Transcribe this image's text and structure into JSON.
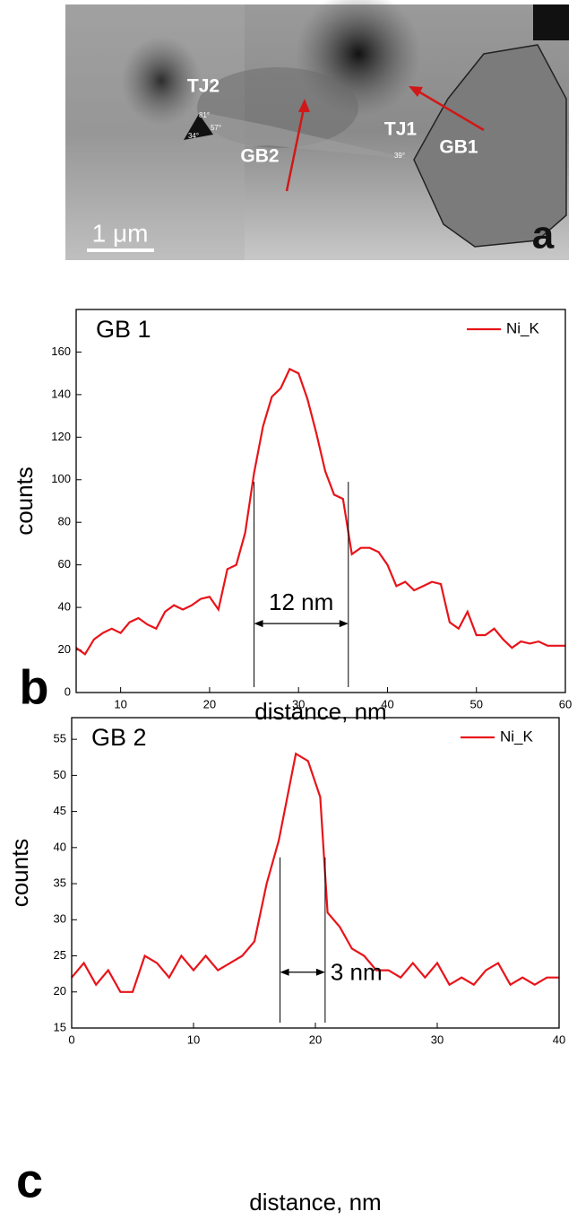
{
  "image": {
    "labels": [
      "TJ2",
      "GB2",
      "TJ1",
      "GB1"
    ],
    "angles": [
      "81°",
      "57°",
      "34°",
      "39°"
    ],
    "scale_bar": "1 μm",
    "panel_label": "a"
  },
  "chart_data": [
    {
      "type": "line",
      "title": "GB 1",
      "panel_label": "b",
      "xlabel": "distance, nm",
      "ylabel": "counts",
      "x": [
        5,
        6,
        7,
        8,
        9,
        10,
        11,
        12,
        13,
        14,
        15,
        16,
        17,
        18,
        19,
        20,
        21,
        22,
        23,
        24,
        25,
        26,
        27,
        28,
        29,
        30,
        31,
        32,
        33,
        34,
        35,
        36,
        37,
        38,
        39,
        40,
        41,
        42,
        43,
        44,
        45,
        46,
        47,
        48,
        49,
        50,
        51,
        52,
        53,
        54,
        55,
        56,
        57,
        58,
        59,
        60
      ],
      "series": [
        {
          "name": "Ni_K",
          "color": "#e8141a",
          "values": [
            21,
            18,
            25,
            28,
            30,
            28,
            33,
            35,
            32,
            30,
            38,
            41,
            39,
            41,
            44,
            45,
            39,
            58,
            60,
            75,
            103,
            125,
            139,
            143,
            152,
            150,
            138,
            122,
            104,
            93,
            91,
            65,
            68,
            68,
            66,
            60,
            50,
            52,
            48,
            50,
            52,
            51,
            33,
            30,
            38,
            27,
            27,
            30,
            25,
            21,
            24,
            23,
            24,
            22,
            22,
            22
          ]
        }
      ],
      "annotation": {
        "text": "12 nm",
        "x": [
          25,
          35.6
        ]
      },
      "xlim": [
        5,
        60
      ],
      "xticks": [
        10,
        20,
        30,
        40,
        50,
        60
      ],
      "ylim": [
        0,
        180
      ],
      "yticks": [
        0,
        20,
        40,
        60,
        80,
        100,
        120,
        140,
        160
      ],
      "legend": "upper right"
    },
    {
      "type": "line",
      "title": "GB 2",
      "panel_label": "c",
      "xlabel": "distance, nm",
      "ylabel": "counts",
      "x": [
        0,
        1,
        2,
        3,
        4,
        5,
        6,
        7,
        8,
        9,
        10,
        11,
        12,
        13,
        14,
        15,
        16,
        17,
        18.4,
        19.4,
        20.4,
        21,
        22,
        23,
        24,
        25,
        26,
        27,
        28,
        29,
        30,
        31,
        32,
        33,
        34,
        35,
        36,
        37,
        38,
        39,
        40
      ],
      "series": [
        {
          "name": "Ni_K",
          "color": "#e8141a",
          "values": [
            22,
            24,
            21,
            23,
            20,
            20,
            25,
            24,
            22,
            25,
            23,
            25,
            23,
            24,
            25,
            27,
            35,
            41,
            53,
            52,
            47,
            31,
            29,
            26,
            25,
            23,
            23,
            22,
            24,
            22,
            24,
            21,
            22,
            21,
            23,
            24,
            21,
            22,
            21,
            22,
            22
          ]
        }
      ],
      "annotation": {
        "text": "3 nm",
        "x": [
          17.1,
          20.8
        ]
      },
      "xlim": [
        0,
        40
      ],
      "xticks": [
        0,
        10,
        20,
        30,
        40
      ],
      "ylim": [
        15,
        58
      ],
      "yticks": [
        15,
        20,
        25,
        30,
        35,
        40,
        45,
        50,
        55
      ],
      "legend": "upper right"
    }
  ]
}
